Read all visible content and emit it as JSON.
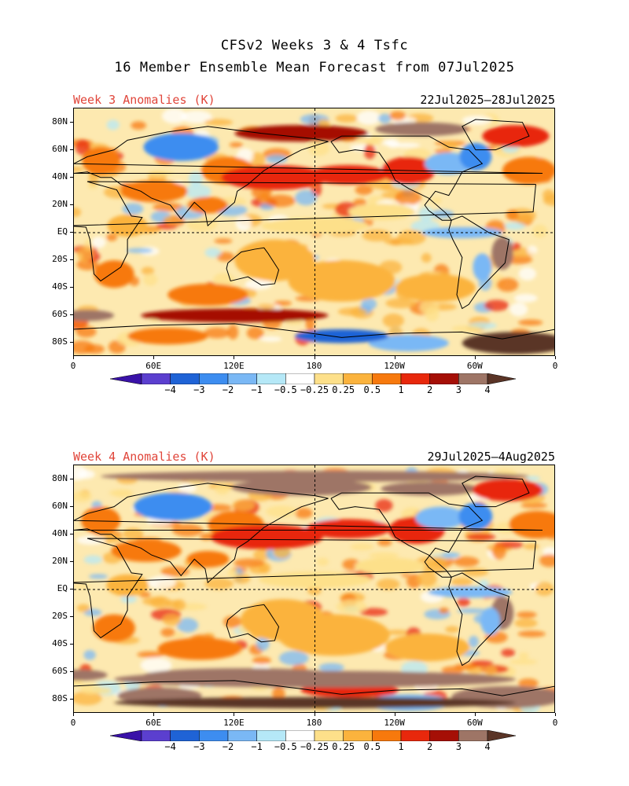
{
  "title": {
    "line1": "CFSv2 Weeks 3 & 4 Tsfc",
    "line2": "16 Member Ensemble Mean Forecast from 07Jul2025"
  },
  "colors": {
    "label_red": "#e0453a",
    "scale": [
      "#3a12a8",
      "#5b3fcf",
      "#1f63d6",
      "#3d8df0",
      "#7ab8f5",
      "#b5e8f7",
      "#ffffff",
      "#fde08a",
      "#fbb33d",
      "#f7790d",
      "#e8280c",
      "#a50f06",
      "#9e7566",
      "#5a3426"
    ]
  },
  "colorbar": {
    "tick_labels": [
      "−4",
      "−3",
      "−2",
      "−1",
      "−0.5",
      "−0.25",
      "0.25",
      "0.5",
      "1",
      "2",
      "3",
      "4"
    ]
  },
  "axes": {
    "lat_labels": [
      "80N",
      "60N",
      "40N",
      "20N",
      "EQ",
      "20S",
      "40S",
      "60S",
      "80S"
    ],
    "lon_labels": [
      "0",
      "60E",
      "120E",
      "180",
      "120W",
      "60W",
      "0"
    ]
  },
  "panels": [
    {
      "label": "Week 3 Anomalies (K)",
      "date_range": "22Jul2025–28Jul2025",
      "variant": 1
    },
    {
      "label": "Week 4 Anomalies (K)",
      "date_range": "29Jul2025–4Aug2025",
      "variant": 2
    }
  ]
}
